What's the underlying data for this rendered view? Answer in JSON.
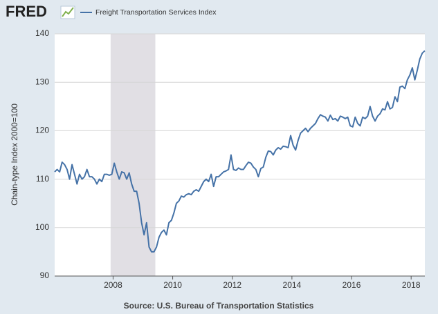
{
  "logo": "FRED",
  "chart_data": {
    "type": "line",
    "ylabel": "Chain-type Index 2000=100",
    "source": "Source: U.S. Bureau of Transportation Statistics",
    "x": [
      2006.04,
      2006.123,
      2006.207,
      2006.29,
      2006.373,
      2006.457,
      2006.54,
      2006.623,
      2006.707,
      2006.79,
      2006.873,
      2006.957,
      2007.04,
      2007.123,
      2007.207,
      2007.29,
      2007.373,
      2007.457,
      2007.54,
      2007.623,
      2007.707,
      2007.79,
      2007.873,
      2007.957,
      2008.04,
      2008.123,
      2008.207,
      2008.29,
      2008.373,
      2008.457,
      2008.54,
      2008.623,
      2008.707,
      2008.79,
      2008.873,
      2008.957,
      2009.04,
      2009.123,
      2009.207,
      2009.29,
      2009.373,
      2009.457,
      2009.54,
      2009.623,
      2009.707,
      2009.79,
      2009.873,
      2009.957,
      2010.04,
      2010.123,
      2010.207,
      2010.29,
      2010.373,
      2010.457,
      2010.54,
      2010.623,
      2010.707,
      2010.79,
      2010.873,
      2010.957,
      2011.04,
      2011.123,
      2011.207,
      2011.29,
      2011.373,
      2011.457,
      2011.54,
      2011.623,
      2011.707,
      2011.79,
      2011.873,
      2011.957,
      2012.04,
      2012.123,
      2012.207,
      2012.29,
      2012.373,
      2012.457,
      2012.54,
      2012.623,
      2012.707,
      2012.79,
      2012.873,
      2012.957,
      2013.04,
      2013.123,
      2013.207,
      2013.29,
      2013.373,
      2013.457,
      2013.54,
      2013.623,
      2013.707,
      2013.79,
      2013.873,
      2013.957,
      2014.04,
      2014.123,
      2014.207,
      2014.29,
      2014.373,
      2014.457,
      2014.54,
      2014.623,
      2014.707,
      2014.79,
      2014.873,
      2014.957,
      2015.04,
      2015.123,
      2015.207,
      2015.29,
      2015.373,
      2015.457,
      2015.54,
      2015.623,
      2015.707,
      2015.79,
      2015.873,
      2015.957,
      2016.04,
      2016.123,
      2016.207,
      2016.29,
      2016.373,
      2016.457,
      2016.54,
      2016.623,
      2016.707,
      2016.79,
      2016.873,
      2016.957,
      2017.04,
      2017.123,
      2017.207,
      2017.29,
      2017.373,
      2017.457,
      2017.54,
      2017.623,
      2017.707,
      2017.79,
      2017.873,
      2017.957,
      2018.04,
      2018.123,
      2018.207,
      2018.29,
      2018.373,
      2018.457
    ],
    "series": [
      {
        "name": "Freight Transportation Services Index",
        "color": "#4572a7",
        "values": [
          111.5,
          112,
          111.5,
          113.5,
          113,
          112,
          110,
          113,
          111,
          109,
          111,
          110,
          110.5,
          112,
          110.5,
          110.5,
          110,
          109,
          110,
          109.5,
          111,
          111,
          110.8,
          111,
          113.3,
          111.5,
          110,
          111.5,
          111.3,
          110,
          111.3,
          109,
          107.5,
          107.5,
          105,
          101,
          98.5,
          101,
          96,
          95,
          95,
          96,
          98,
          99,
          99.5,
          98.5,
          101,
          101.5,
          103,
          105,
          105.5,
          106.5,
          106.3,
          106.8,
          107,
          106.8,
          107.5,
          107.8,
          107.5,
          108.5,
          109.5,
          110,
          109.5,
          111,
          108.5,
          110.5,
          110.5,
          111,
          111.5,
          111.7,
          112,
          115,
          112,
          111.8,
          112.3,
          112,
          112,
          112.8,
          113.5,
          113.3,
          112.5,
          112,
          110.5,
          112.2,
          112.5,
          114.5,
          115.8,
          115.7,
          115,
          116,
          116.5,
          116.2,
          116.8,
          116.7,
          116.5,
          119,
          117,
          116,
          118,
          119.5,
          120,
          120.5,
          119.8,
          120.5,
          121,
          121.5,
          122.5,
          123.3,
          123,
          122.8,
          122,
          123.2,
          122.3,
          122.5,
          122,
          123,
          122.8,
          122.5,
          122.8,
          121,
          120.8,
          122.8,
          121.5,
          121,
          122.8,
          122.5,
          123,
          125,
          123,
          122,
          123,
          123.5,
          124.5,
          124.3,
          126,
          124.5,
          124.8,
          127,
          126,
          129,
          129.2,
          128.7,
          130.5,
          131.5,
          133,
          130.5,
          132.5,
          134.8,
          136,
          136.5
        ]
      }
    ],
    "recessions": [
      [
        2007.917,
        2009.417
      ]
    ],
    "recession_color": "#e1dfe4",
    "xlim": [
      2006.04,
      2018.46
    ],
    "xticks": [
      2008,
      2010,
      2012,
      2014,
      2016,
      2018
    ],
    "ylim": [
      90,
      140
    ],
    "yticks": [
      90,
      100,
      110,
      120,
      130,
      140
    ],
    "grid": true
  }
}
